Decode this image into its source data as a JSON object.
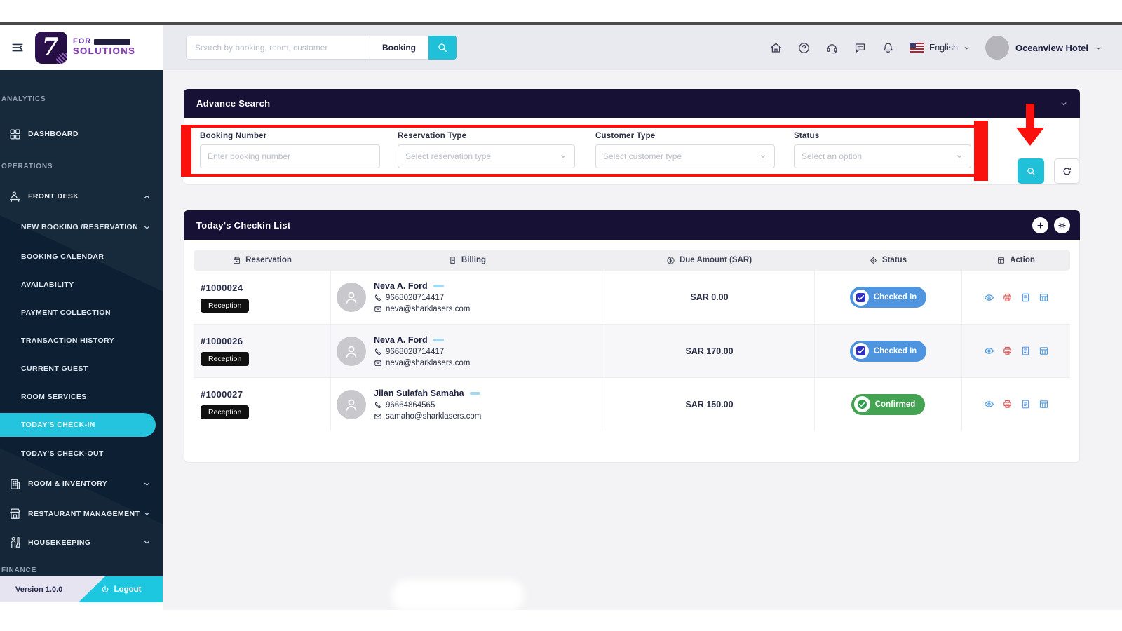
{
  "topbar": {
    "search": {
      "placeholder": "Search by booking, room, customer",
      "category": "Booking"
    },
    "icons": [
      {
        "name": "home-icon"
      },
      {
        "name": "help-icon"
      },
      {
        "name": "support-icon"
      },
      {
        "name": "chat-icon"
      },
      {
        "name": "notification-icon"
      }
    ],
    "language": {
      "label": "English",
      "flag": "us-flag-icon"
    },
    "account": {
      "hotel_name": "Oceanview Hotel"
    }
  },
  "sidebar": {
    "logo": {
      "text_top": "FOR",
      "text_bottom": "SOLUTIONS"
    },
    "items": [
      {
        "type": "section",
        "label": "ANALYTICS"
      },
      {
        "type": "item",
        "label": "DASHBOARD",
        "icon": "dashboard-icon",
        "size": "h46"
      },
      {
        "type": "section",
        "label": "OPERATIONS",
        "size": "h44"
      },
      {
        "type": "item",
        "label": "FRONT DESK",
        "icon": "front-desk-icon",
        "chevron": "up"
      },
      {
        "type": "subitem",
        "label": "NEW BOOKING /RESERVATION",
        "chevron": "down",
        "size": "h44"
      },
      {
        "type": "subitem",
        "label": "BOOKING CALENDAR"
      },
      {
        "type": "subitem",
        "label": "AVAILABILITY"
      },
      {
        "type": "subitem",
        "label": "PAYMENT COLLECTION"
      },
      {
        "type": "subitem",
        "label": "TRANSACTION HISTORY"
      },
      {
        "type": "subitem",
        "label": "CURRENT GUEST"
      },
      {
        "type": "subitem",
        "label": "ROOM SERVICES"
      },
      {
        "type": "subitem",
        "label": "TODAY'S CHECK-IN",
        "active": true
      },
      {
        "type": "subitem",
        "label": "TODAY'S CHECK-OUT",
        "size": "h42"
      },
      {
        "type": "item",
        "label": "ROOM & INVENTORY",
        "icon": "room-inventory-icon",
        "chevron": "down",
        "size": "h42"
      },
      {
        "type": "item",
        "label": "RESTAURANT MANAGEMENT",
        "icon": "restaurant-icon",
        "chevron": "down",
        "size": "h41"
      },
      {
        "type": "item",
        "label": "HOUSEKEEPING",
        "icon": "housekeeping-icon",
        "chevron": "down",
        "size": "h41"
      },
      {
        "type": "section",
        "label": "FINANCE",
        "size": "h30"
      }
    ],
    "footer": {
      "version": "Version 1.0.0",
      "logout": "Logout"
    }
  },
  "advance_search": {
    "title": "Advance Search",
    "fields": [
      {
        "label": "Booking Number",
        "placeholder": "Enter booking number",
        "control": "input"
      },
      {
        "label": "Reservation Type",
        "placeholder": "Select reservation type",
        "control": "select"
      },
      {
        "label": "Customer Type",
        "placeholder": "Select customer type",
        "control": "select"
      },
      {
        "label": "Status",
        "placeholder": "Select an option",
        "control": "select"
      }
    ]
  },
  "checkin_list": {
    "title": "Today's Checkin List",
    "columns": [
      {
        "label": "Reservation",
        "icon": "reservation-column-icon"
      },
      {
        "label": "Billing",
        "icon": "billing-column-icon"
      },
      {
        "label": "Due Amount (SAR)",
        "icon": "due-amount-column-icon"
      },
      {
        "label": "Status",
        "icon": "status-column-icon"
      },
      {
        "label": "Action",
        "icon": "action-column-icon"
      }
    ],
    "rows": [
      {
        "booking_id": "#1000024",
        "source": "Reception",
        "guest_name": "Neva A. Ford",
        "phone": "9668028714417",
        "email": "neva@sharklasers.com",
        "due_amount": "SAR 0.00",
        "status": "Checked In",
        "status_type": "checked-in"
      },
      {
        "booking_id": "#1000026",
        "source": "Reception",
        "guest_name": "Neva A. Ford",
        "phone": "9668028714417",
        "email": "neva@sharklasers.com",
        "due_amount": "SAR 170.00",
        "status": "Checked In",
        "status_type": "checked-in"
      },
      {
        "booking_id": "#1000027",
        "source": "Reception",
        "guest_name": "Jilan Sulafah Samaha",
        "phone": "96664864565",
        "email": "samaho@sharklasers.com",
        "due_amount": "SAR 150.00",
        "status": "Confirmed",
        "status_type": "confirmed"
      }
    ],
    "row_actions": [
      "view-icon",
      "print-icon",
      "invoice-icon",
      "folio-icon"
    ]
  },
  "annotation": {
    "highlight_color": "#fa100d"
  },
  "colors": {
    "accent_cyan": "#1fc0d8",
    "panel_header": "#171235",
    "sidebar_navy": "#0d2033",
    "status_checked_in": "#4f94de",
    "status_confirmed": "#43a352"
  }
}
